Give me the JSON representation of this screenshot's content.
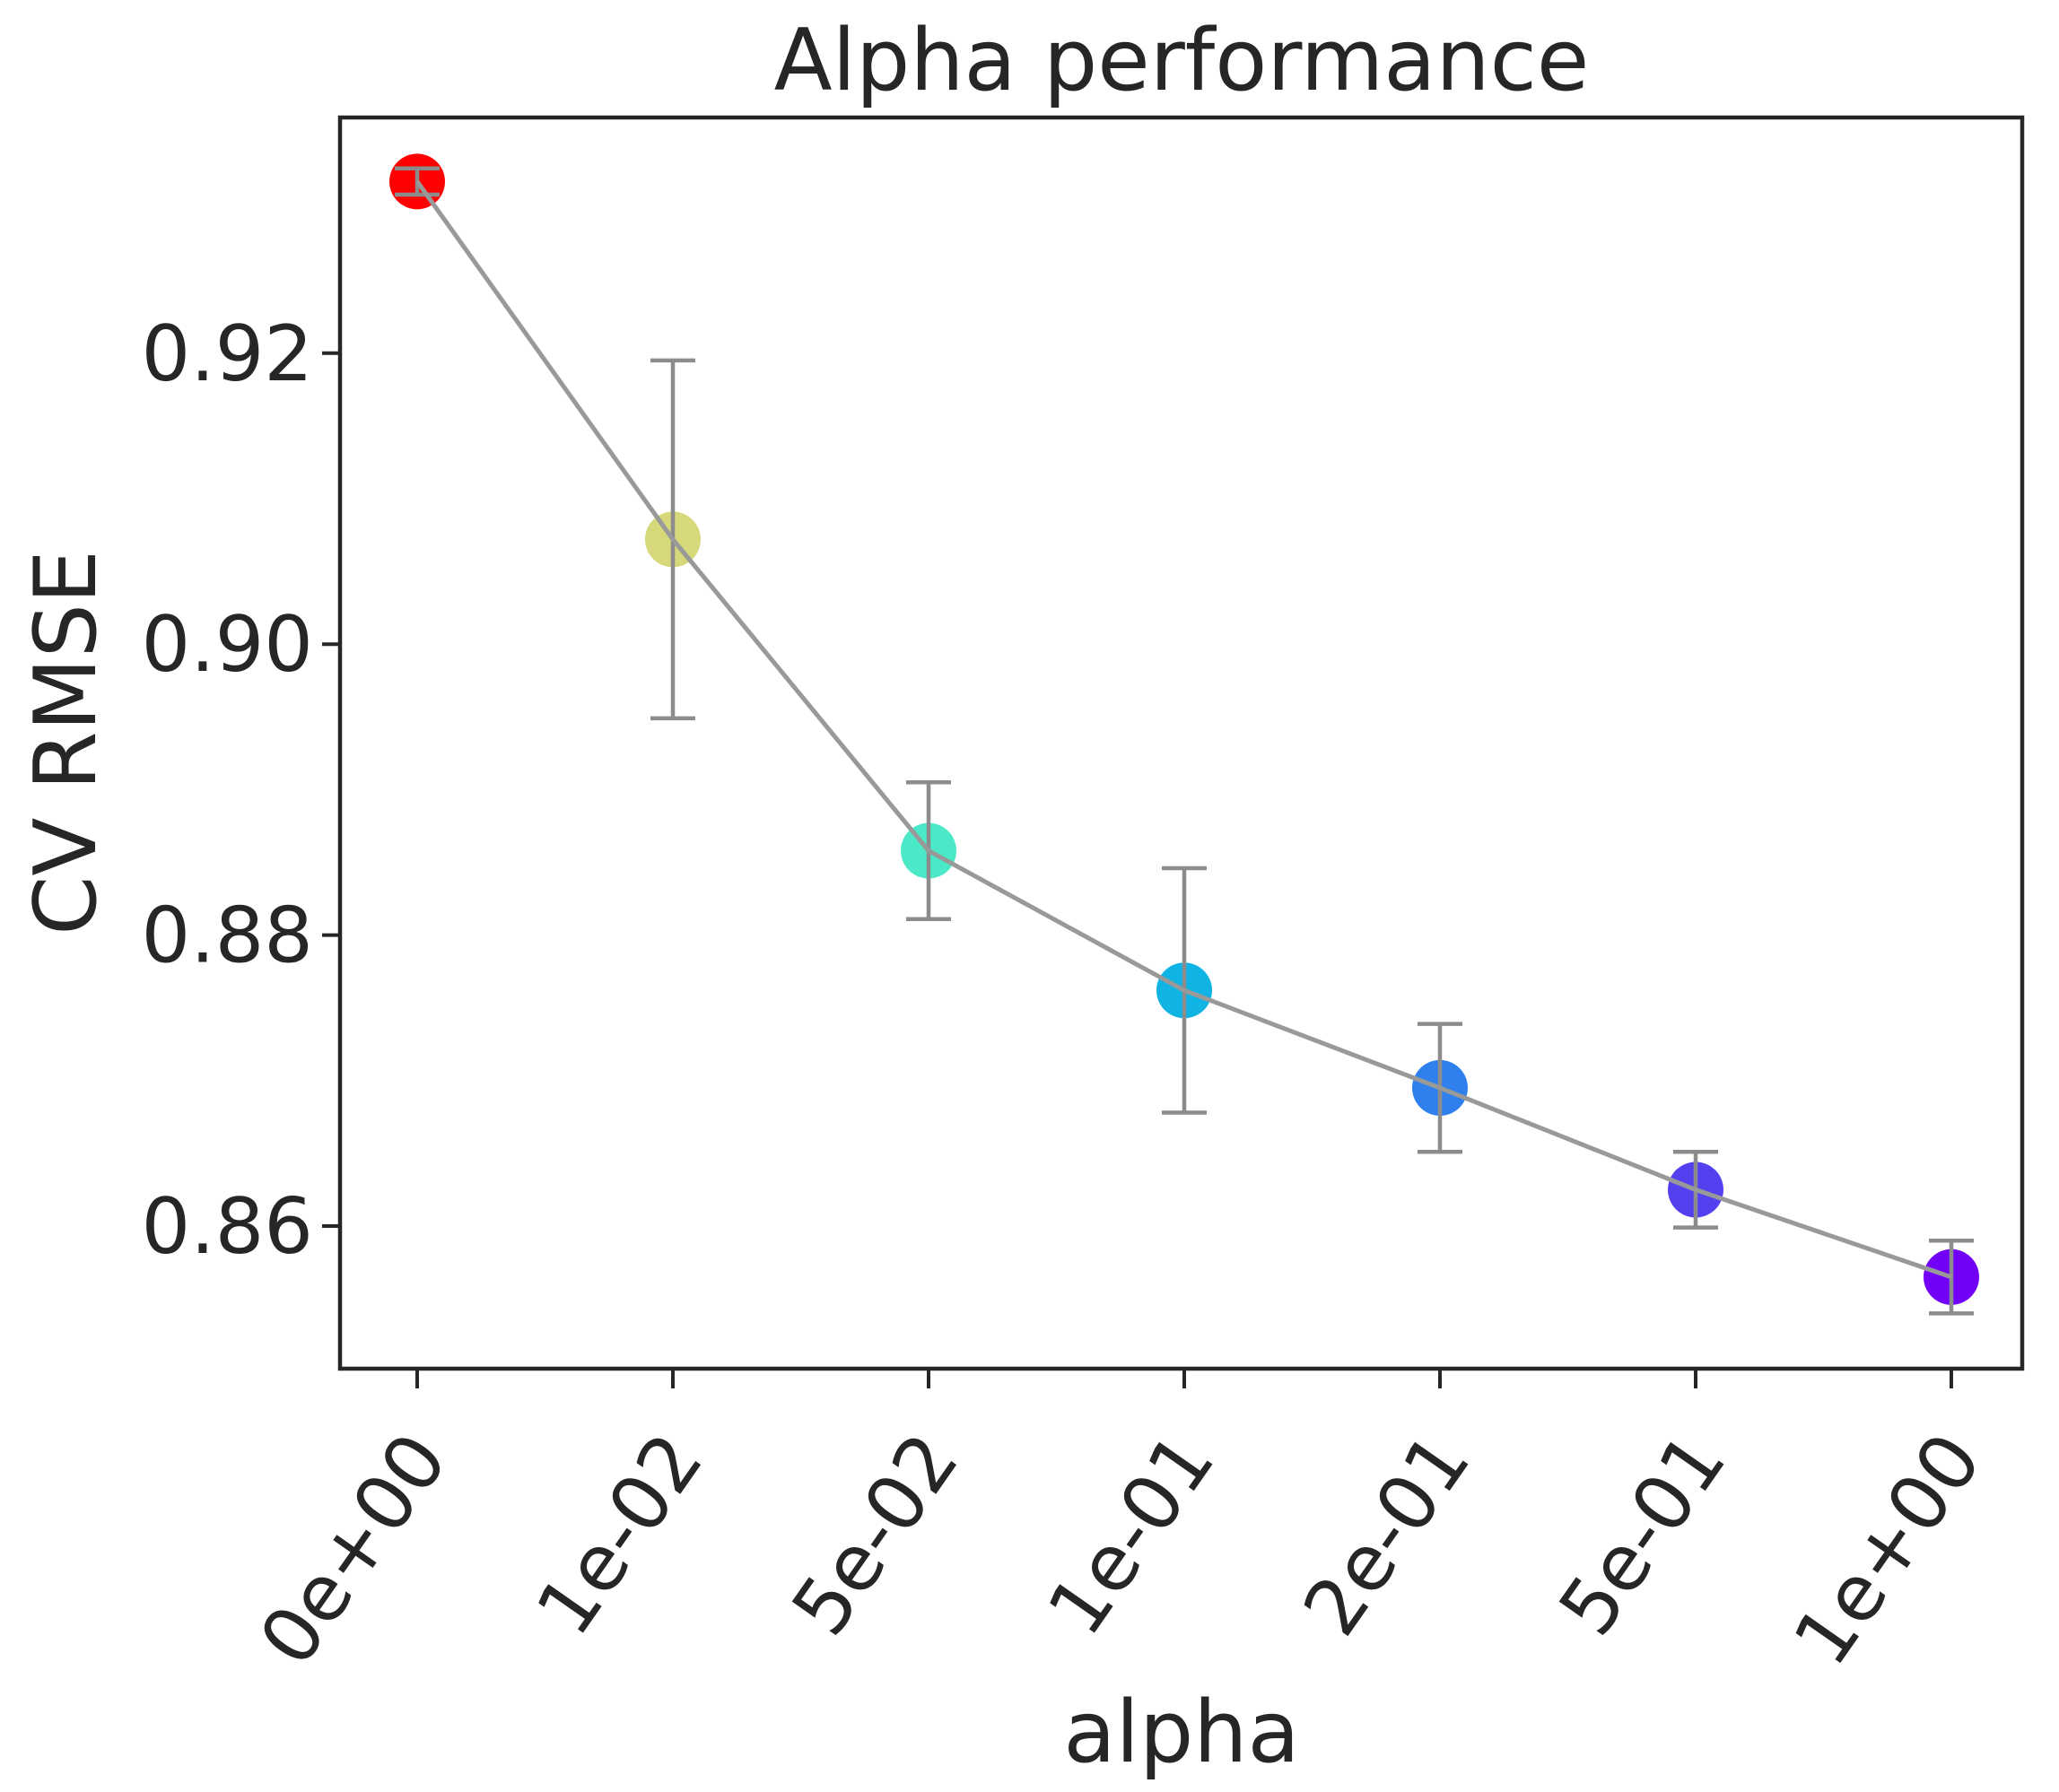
{
  "chart_data": {
    "type": "scatter",
    "title": "Alpha performance",
    "xlabel": "alpha",
    "ylabel": "CV RMSE",
    "categories": [
      "0e+00",
      "1e-02",
      "5e-02",
      "1e-01",
      "2e-01",
      "5e-01",
      "1e+00"
    ],
    "values": [
      0.9318,
      0.9072,
      0.8858,
      0.8762,
      0.8695,
      0.8625,
      0.8565
    ],
    "errors": [
      0.0009,
      0.0123,
      0.0047,
      0.0084,
      0.0044,
      0.0026,
      0.0025
    ],
    "point_colors": [
      "#ff0000",
      "#d6d87a",
      "#4ce9c8",
      "#10b4e4",
      "#2f80ed",
      "#5540f0",
      "#7200f8"
    ],
    "line_color": "#999999",
    "errorbar_color": "#8c8c8c",
    "yticks": [
      0.86,
      0.88,
      0.9,
      0.92
    ],
    "ytick_labels": [
      "0.86",
      "0.88",
      "0.90",
      "0.92"
    ],
    "ylim": [
      0.8502,
      0.9362
    ],
    "grid": false,
    "legend": "none"
  }
}
